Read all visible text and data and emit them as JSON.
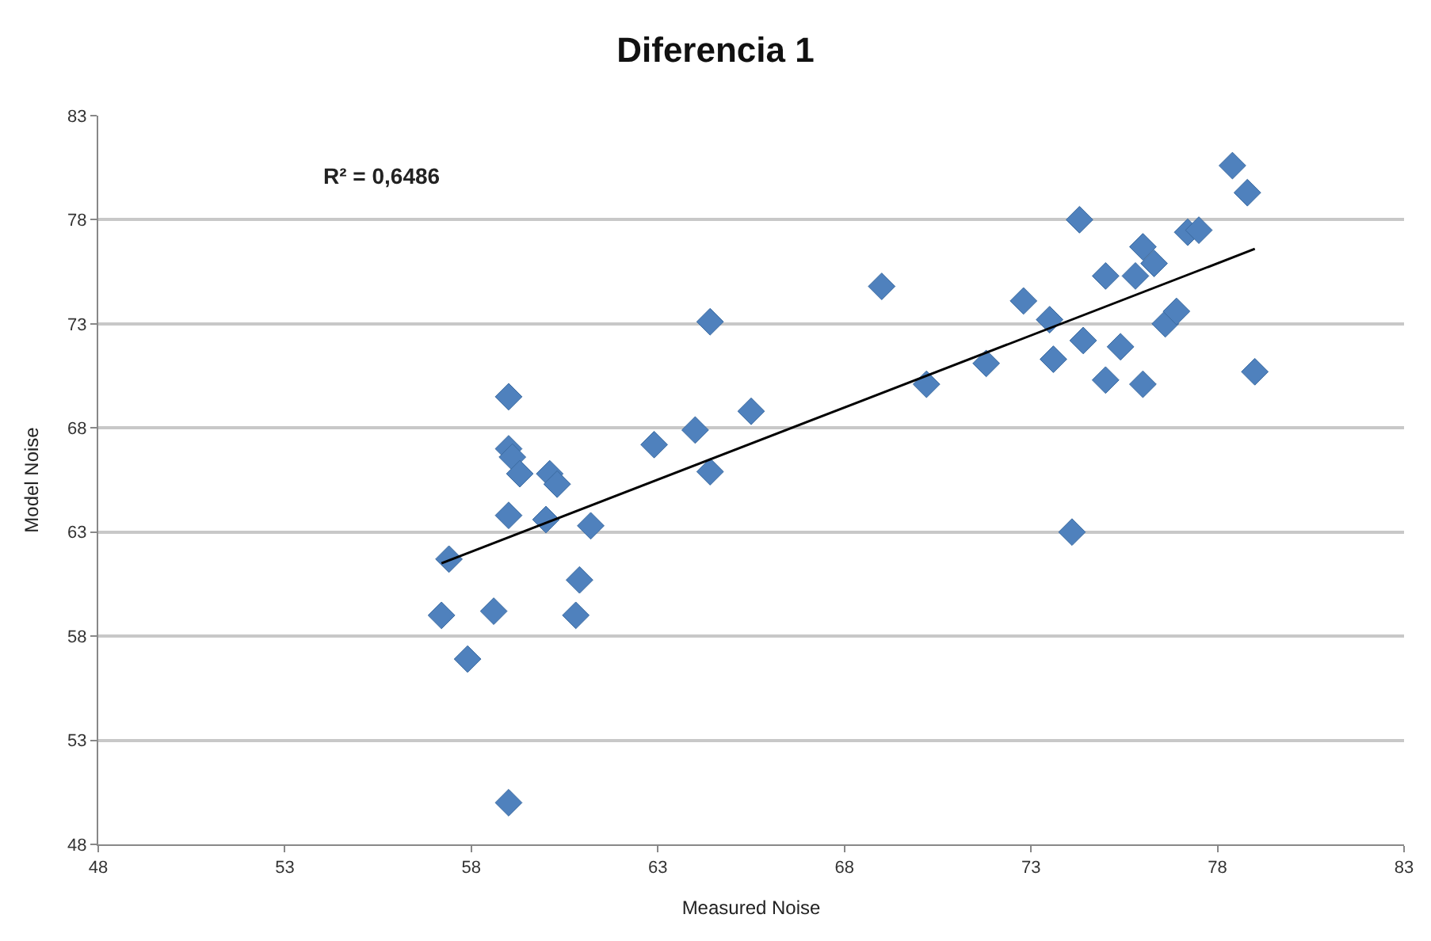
{
  "chart_data": {
    "type": "scatter",
    "title": "Diferencia 1",
    "xlabel": "Measured Noise",
    "ylabel": "Model Noise",
    "annotations": [
      "R² = 0,6486"
    ],
    "xlim": [
      48,
      83
    ],
    "xticks": [
      48,
      53,
      58,
      63,
      68,
      73,
      78,
      83
    ],
    "ylim": [
      48,
      83
    ],
    "yticks": [
      48,
      53,
      58,
      63,
      68,
      73,
      78,
      83
    ],
    "grid": "y",
    "marker": "diamond",
    "series": [
      {
        "color": "#4f81bd",
        "x": [
          57.2,
          57.4,
          57.9,
          58.6,
          59.0,
          59.0,
          59.1,
          59.3,
          59.0,
          59.0,
          60.1,
          60.3,
          60.0,
          61.2,
          60.9,
          60.8,
          62.9,
          64.0,
          64.4,
          64.4,
          65.5,
          69.0,
          70.2,
          71.8,
          72.8,
          73.5,
          73.6,
          74.3,
          74.1,
          74.4,
          75.0,
          75.0,
          75.4,
          75.8,
          76.0,
          76.3,
          76.0,
          76.6,
          76.9,
          77.2,
          77.5,
          78.4,
          78.8,
          79.0
        ],
        "values": [
          59.0,
          61.7,
          56.9,
          59.2,
          69.5,
          67.0,
          66.6,
          65.8,
          63.8,
          50.0,
          65.8,
          65.3,
          63.6,
          63.3,
          60.7,
          59.0,
          67.2,
          67.9,
          65.9,
          73.1,
          68.8,
          74.8,
          70.1,
          71.1,
          74.1,
          73.2,
          71.3,
          78.0,
          63.0,
          72.2,
          75.3,
          70.3,
          71.9,
          75.3,
          76.7,
          75.9,
          70.1,
          73.0,
          73.6,
          77.4,
          77.5,
          80.6,
          79.3,
          70.7
        ]
      },
      {
        "type": "line",
        "color": "#000000",
        "marker": "none",
        "x": [
          57.2,
          79.0
        ],
        "values": [
          61.5,
          76.6
        ]
      }
    ]
  }
}
